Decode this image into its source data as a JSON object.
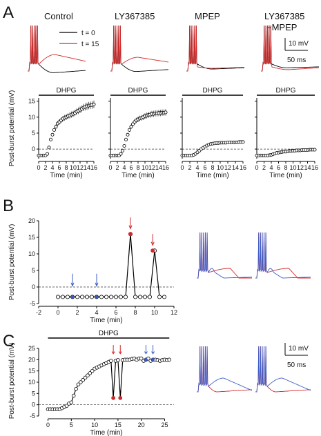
{
  "panel_letters": {
    "a": "A",
    "b": "B",
    "c": "C"
  },
  "colors": {
    "red": "#d62728",
    "blue": "#3a5bc7",
    "black": "#000000",
    "gray": "#555555"
  },
  "legend": {
    "t0": "t = 0",
    "t15": "t = 15"
  },
  "scale_bars": {
    "voltage": "10 mV",
    "time": "50 ms"
  },
  "chart_data": [
    {
      "panel": "A",
      "type": "scatter",
      "subplots": [
        {
          "title": "Control",
          "drug_bar": "DHPG",
          "xlabel": "Time (min)",
          "ylabel": "Post-burst potential (mV)",
          "xlim": [
            0,
            16
          ],
          "ylim": [
            -3,
            16
          ],
          "xticks": [
            0,
            2,
            4,
            6,
            8,
            10,
            12,
            14,
            16
          ],
          "yticks": [
            0,
            5,
            10,
            15
          ],
          "x": [
            0,
            0.5,
            1,
            1.5,
            2,
            2.5,
            3,
            3.5,
            4,
            4.5,
            5,
            5.5,
            6,
            6.5,
            7,
            7.5,
            8,
            8.5,
            9,
            9.5,
            10,
            10.5,
            11,
            11.5,
            12,
            12.5,
            13,
            13.5,
            14,
            14.5,
            15,
            15.5,
            16
          ],
          "y": [
            -2,
            -2,
            -2,
            -2,
            -2,
            -1.5,
            0.5,
            3,
            4.5,
            6,
            7,
            8,
            8.5,
            9,
            9.5,
            9.8,
            10,
            10.3,
            10.5,
            10.8,
            11,
            11.3,
            11.7,
            12,
            12.3,
            12.6,
            13,
            13.2,
            13.4,
            13.6,
            13.7,
            13.8,
            14
          ]
        },
        {
          "title": "LY367385",
          "drug_bar": "DHPG",
          "xlabel": "Time (min)",
          "xlim": [
            0,
            16
          ],
          "ylim": [
            -3,
            16
          ],
          "xticks": [
            0,
            2,
            4,
            6,
            8,
            10,
            12,
            14,
            16
          ],
          "yticks": [
            0,
            5,
            10,
            15
          ],
          "x": [
            0,
            0.5,
            1,
            1.5,
            2,
            2.5,
            3,
            3.5,
            4,
            4.5,
            5,
            5.5,
            6,
            6.5,
            7,
            7.5,
            8,
            8.5,
            9,
            9.5,
            10,
            10.5,
            11,
            11.5,
            12,
            12.5,
            13,
            13.5,
            14,
            14.5,
            15,
            15.5,
            16
          ],
          "y": [
            -2,
            -2,
            -2,
            -2,
            -2,
            -2,
            -1.5,
            -0.5,
            1,
            3,
            4.5,
            6,
            7,
            7.8,
            8.5,
            9,
            9.3,
            9.6,
            9.8,
            10,
            10.3,
            10.5,
            10.7,
            10.8,
            11,
            11,
            11.2,
            11.2,
            11.3,
            11.3,
            11.4,
            11.4,
            11.5
          ]
        },
        {
          "title": "MPEP",
          "drug_bar": "DHPG",
          "xlabel": "Time (min)",
          "xlim": [
            0,
            16
          ],
          "ylim": [
            -3,
            16
          ],
          "xticks": [
            0,
            2,
            4,
            6,
            8,
            10,
            12,
            14,
            16
          ],
          "yticks": [
            0,
            5,
            10,
            15
          ],
          "x": [
            0,
            0.5,
            1,
            1.5,
            2,
            2.5,
            3,
            3.5,
            4,
            4.5,
            5,
            5.5,
            6,
            6.5,
            7,
            7.5,
            8,
            8.5,
            9,
            9.5,
            10,
            10.5,
            11,
            11.5,
            12,
            12.5,
            13,
            13.5,
            14,
            14.5,
            15,
            15.5,
            16
          ],
          "y": [
            -2,
            -2,
            -2,
            -2,
            -2,
            -2,
            -1.8,
            -1.5,
            -1,
            -0.5,
            0,
            0.4,
            0.8,
            1.1,
            1.4,
            1.6,
            1.7,
            1.8,
            1.9,
            1.9,
            2,
            2,
            2,
            2,
            2.1,
            2.1,
            2.1,
            2.1,
            2.1,
            2.1,
            2.2,
            2.2,
            2.2
          ]
        },
        {
          "title": "LY367385\n+MPEP",
          "drug_bar": "DHPG",
          "xlabel": "Time (min)",
          "xlim": [
            0,
            16
          ],
          "ylim": [
            -3,
            16
          ],
          "xticks": [
            0,
            2,
            4,
            6,
            8,
            10,
            12,
            14,
            16
          ],
          "yticks": [
            0,
            5,
            10,
            15
          ],
          "x": [
            0,
            0.5,
            1,
            1.5,
            2,
            2.5,
            3,
            3.5,
            4,
            4.5,
            5,
            5.5,
            6,
            6.5,
            7,
            7.5,
            8,
            8.5,
            9,
            9.5,
            10,
            10.5,
            11,
            11.5,
            12,
            12.5,
            13,
            13.5,
            14,
            14.5,
            15,
            15.5,
            16
          ],
          "y": [
            -2,
            -2,
            -2,
            -2,
            -2,
            -2,
            -2,
            -1.9,
            -1.8,
            -1.6,
            -1.4,
            -1.2,
            -1.1,
            -1,
            -0.9,
            -0.8,
            -0.8,
            -0.7,
            -0.6,
            -0.6,
            -0.5,
            -0.5,
            -0.4,
            -0.4,
            -0.4,
            -0.3,
            -0.3,
            -0.3,
            -0.3,
            -0.2,
            -0.2,
            -0.2,
            -0.2
          ]
        }
      ]
    },
    {
      "panel": "B",
      "type": "line",
      "xlabel": "Time (min)",
      "ylabel": "Post-burst potential (mV)",
      "xlim": [
        -2,
        12
      ],
      "ylim": [
        -5,
        20
      ],
      "xticks": [
        -2,
        0,
        2,
        4,
        6,
        8,
        10,
        12
      ],
      "yticks": [
        -5,
        0,
        5,
        10,
        15,
        20
      ],
      "x": [
        0,
        0.5,
        1,
        1.5,
        2,
        2.5,
        3,
        3.5,
        4,
        4.5,
        5,
        5.5,
        6,
        6.5,
        7,
        7.5,
        8,
        8.5,
        9,
        9.5,
        10,
        10.5,
        11
      ],
      "y": [
        -3,
        -3,
        -3,
        -3,
        -3,
        -3,
        -3,
        -3,
        -3,
        -3,
        -3,
        -3,
        -3,
        -3,
        -3,
        16,
        -3,
        -3,
        -3,
        -3,
        11,
        -3,
        -3
      ],
      "blue_x": [
        1.5,
        4
      ],
      "red_x": [
        7.5,
        9.8
      ],
      "red_y": [
        16,
        11
      ]
    },
    {
      "panel": "C",
      "type": "line",
      "drug_bar": "DHPG",
      "xlabel": "Time (min)",
      "ylabel": "Post-burst potential (mV)",
      "xlim": [
        -2,
        27
      ],
      "ylim": [
        -5,
        25
      ],
      "xticks": [
        0,
        5,
        10,
        15,
        20,
        25
      ],
      "yticks": [
        -5,
        0,
        5,
        10,
        15,
        20,
        25
      ],
      "x": [
        0,
        0.5,
        1,
        1.5,
        2,
        2.5,
        3,
        3.5,
        4,
        4.5,
        5,
        5.5,
        6,
        6.5,
        7,
        7.5,
        8,
        8.5,
        9,
        9.5,
        10,
        10.5,
        11,
        11.5,
        12,
        12.5,
        13,
        13.5,
        14,
        14.5,
        15,
        15.5,
        16,
        16.5,
        17,
        17.5,
        18,
        18.5,
        19,
        19.5,
        20,
        20.5,
        21,
        21.5,
        22,
        22.5,
        23,
        23.5,
        24,
        24.5,
        25,
        25.5,
        26
      ],
      "y": [
        -2,
        -2,
        -2,
        -2,
        -2,
        -2,
        -1.5,
        -1,
        -0.5,
        0.5,
        1,
        4,
        7,
        9,
        10,
        11,
        12,
        13,
        14,
        15,
        16,
        16.5,
        17,
        17.5,
        18,
        18.5,
        19,
        19.5,
        3,
        19.5,
        19.8,
        3,
        19.8,
        20,
        20,
        20,
        20.3,
        20.5,
        20,
        20.5,
        20.5,
        19.5,
        20,
        20.5,
        19.5,
        20,
        20,
        19.8,
        19.5,
        19.8,
        20,
        19.8,
        20
      ],
      "red_x": [
        14,
        15.5
      ],
      "red_y": [
        3,
        3
      ],
      "blue_x": [
        21,
        22.5
      ]
    }
  ]
}
